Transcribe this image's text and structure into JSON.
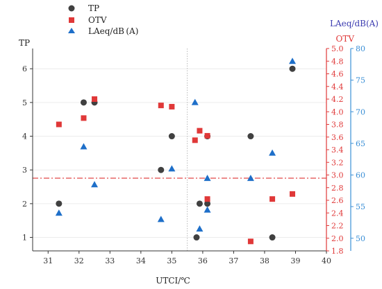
{
  "chart_data": {
    "type": "scatter",
    "xlabel": "UTCI/℃",
    "ylabel_left": "TP",
    "ylabel_right1": "OTV",
    "ylabel_right2": "LAeq/dB(A)",
    "x_ticks": [
      "31",
      "32",
      "33",
      "34",
      "35",
      "36",
      "37",
      "38",
      "39",
      "40"
    ],
    "y_ticks_left": [
      "1",
      "2",
      "3",
      "4",
      "5",
      "6"
    ],
    "y_ticks_right1": [
      "1.8",
      "2.0",
      "2.2",
      "2.4",
      "2.6",
      "2.8",
      "3.0",
      "3.2",
      "3.4",
      "3.6",
      "3.8",
      "4.0",
      "4.2",
      "4.4",
      "4.6",
      "4.8",
      "5.0"
    ],
    "y_ticks_right2": [
      "50",
      "55",
      "60",
      "65",
      "70",
      "75",
      "80"
    ],
    "xlim": [
      30.5,
      40
    ],
    "ylim_left": [
      0.6,
      6.6
    ],
    "ylim_right1": [
      1.8,
      5.0
    ],
    "ylim_right2": [
      48,
      80
    ],
    "reference_lines": {
      "vertical_x": 35.5,
      "horizontal_otv": 2.95
    },
    "legend": {
      "position": "top-left"
    },
    "series": [
      {
        "name": "TP",
        "axis": "left",
        "marker": "circle",
        "color": "#404040",
        "points": [
          [
            31.35,
            2.0
          ],
          [
            32.15,
            5.0
          ],
          [
            32.5,
            5.0
          ],
          [
            34.65,
            3.0
          ],
          [
            35.0,
            4.0
          ],
          [
            35.8,
            1.0
          ],
          [
            35.9,
            2.0
          ],
          [
            36.15,
            4.0
          ],
          [
            36.15,
            2.0
          ],
          [
            37.55,
            4.0
          ],
          [
            38.25,
            1.0
          ],
          [
            38.9,
            6.0
          ]
        ]
      },
      {
        "name": "OTV",
        "axis": "right1",
        "marker": "square",
        "color": "#e03838",
        "points": [
          [
            31.35,
            3.8
          ],
          [
            32.15,
            3.9
          ],
          [
            32.5,
            4.2
          ],
          [
            34.65,
            4.1
          ],
          [
            35.0,
            4.08
          ],
          [
            35.75,
            3.55
          ],
          [
            35.9,
            3.7
          ],
          [
            36.15,
            3.62
          ],
          [
            36.15,
            2.62
          ],
          [
            37.55,
            1.95
          ],
          [
            38.25,
            2.62
          ],
          [
            38.9,
            2.7
          ]
        ]
      },
      {
        "name": "LAeq/dB (A)",
        "axis": "right2",
        "marker": "triangle",
        "color": "#1e6fc9",
        "points": [
          [
            31.35,
            54
          ],
          [
            32.15,
            64.5
          ],
          [
            32.5,
            58.5
          ],
          [
            34.65,
            53
          ],
          [
            35.0,
            61
          ],
          [
            35.75,
            71.5
          ],
          [
            35.9,
            51.5
          ],
          [
            36.15,
            59.5
          ],
          [
            36.15,
            54.5
          ],
          [
            37.55,
            59.5
          ],
          [
            38.25,
            63.5
          ],
          [
            38.9,
            78
          ]
        ]
      }
    ]
  }
}
